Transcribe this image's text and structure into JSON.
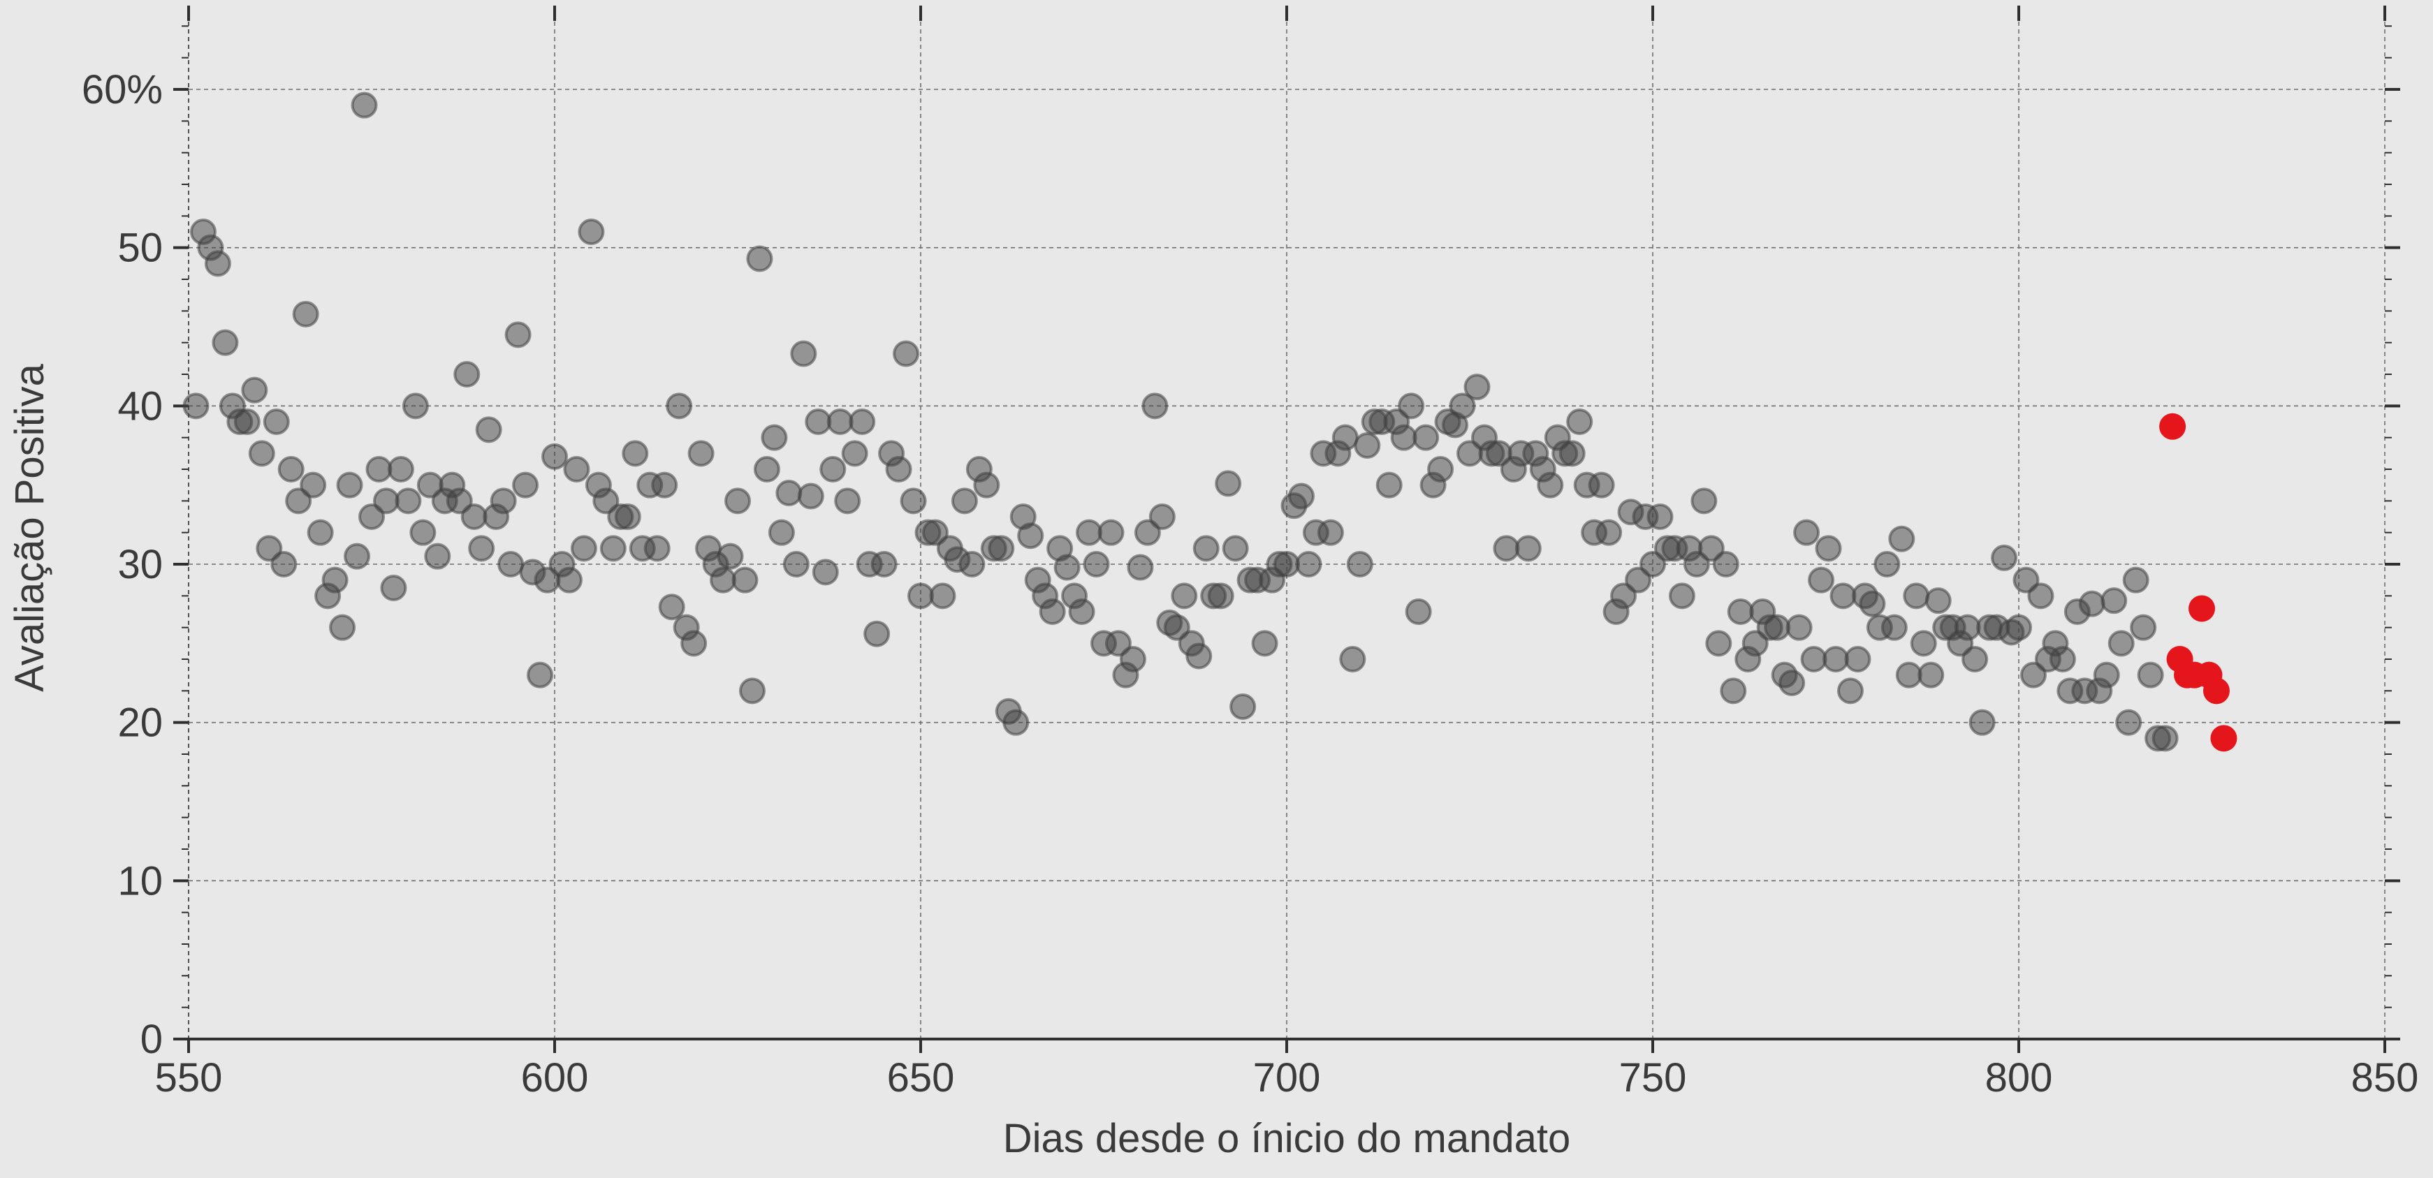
{
  "chart_data": {
    "type": "scatter",
    "title": "",
    "xlabel": "Dias desde o ínicio do mandato",
    "ylabel": "Avaliação Positiva",
    "xlim": [
      550,
      850
    ],
    "ylim": [
      0,
      65
    ],
    "x_ticks": [
      550,
      600,
      650,
      700,
      750,
      800,
      850
    ],
    "x_tick_labels": [
      "550",
      "600",
      "650",
      "700",
      "750",
      "800",
      "850"
    ],
    "y_ticks": [
      0,
      10,
      20,
      30,
      40,
      50,
      60
    ],
    "y_tick_labels": [
      "0",
      "10",
      "20",
      "30",
      "40",
      "50",
      "60%"
    ],
    "grid": true,
    "colors": {
      "background": "#e8e8e9",
      "series_gray": "#3f3f3f",
      "series_red": "#e4161b",
      "grid": "#6e6e6e",
      "axis": "#2e2e2e"
    },
    "series": [
      {
        "color": "#3f3f3f",
        "points": [
          [
            551,
            40
          ],
          [
            552,
            51
          ],
          [
            553,
            50
          ],
          [
            554,
            49
          ],
          [
            555,
            44
          ],
          [
            556,
            40
          ],
          [
            557,
            39
          ],
          [
            558,
            39
          ],
          [
            559,
            41
          ],
          [
            560,
            37
          ],
          [
            561,
            31
          ],
          [
            562,
            39
          ],
          [
            563,
            30
          ],
          [
            564,
            36
          ],
          [
            565,
            34
          ],
          [
            566,
            45.8
          ],
          [
            567,
            35
          ],
          [
            568,
            32
          ],
          [
            569,
            28
          ],
          [
            570,
            29
          ],
          [
            571,
            26
          ],
          [
            572,
            35
          ],
          [
            573,
            30.5
          ],
          [
            574,
            59
          ],
          [
            575,
            33
          ],
          [
            576,
            36
          ],
          [
            577,
            34
          ],
          [
            578,
            28.5
          ],
          [
            579,
            36
          ],
          [
            580,
            34
          ],
          [
            581,
            40
          ],
          [
            582,
            32
          ],
          [
            583,
            35
          ],
          [
            584,
            30.5
          ],
          [
            585,
            34
          ],
          [
            586,
            35
          ],
          [
            587,
            34
          ],
          [
            588,
            42
          ],
          [
            589,
            33
          ],
          [
            590,
            31
          ],
          [
            591,
            38.5
          ],
          [
            592,
            33
          ],
          [
            593,
            34
          ],
          [
            594,
            30
          ],
          [
            595,
            44.5
          ],
          [
            596,
            35
          ],
          [
            597,
            29.5
          ],
          [
            598,
            23
          ],
          [
            599,
            29
          ],
          [
            600,
            36.8
          ],
          [
            601,
            30
          ],
          [
            602,
            29
          ],
          [
            603,
            36
          ],
          [
            604,
            31
          ],
          [
            605,
            51
          ],
          [
            606,
            35
          ],
          [
            607,
            34
          ],
          [
            608,
            31
          ],
          [
            609,
            33
          ],
          [
            610,
            33
          ],
          [
            611,
            37
          ],
          [
            612,
            31
          ],
          [
            613,
            35
          ],
          [
            614,
            31
          ],
          [
            615,
            35
          ],
          [
            616,
            27.3
          ],
          [
            617,
            40
          ],
          [
            618,
            26
          ],
          [
            619,
            25
          ],
          [
            620,
            37
          ],
          [
            621,
            31
          ],
          [
            622,
            30
          ],
          [
            623,
            29
          ],
          [
            624,
            30.5
          ],
          [
            625,
            34
          ],
          [
            626,
            29
          ],
          [
            627,
            22
          ],
          [
            628,
            49.3
          ],
          [
            629,
            36
          ],
          [
            630,
            38
          ],
          [
            631,
            32
          ],
          [
            632,
            34.5
          ],
          [
            633,
            30
          ],
          [
            634,
            43.3
          ],
          [
            635,
            34.3
          ],
          [
            636,
            39
          ],
          [
            637,
            29.5
          ],
          [
            638,
            36
          ],
          [
            639,
            39
          ],
          [
            640,
            34
          ],
          [
            641,
            37
          ],
          [
            642,
            39
          ],
          [
            643,
            30
          ],
          [
            644,
            25.6
          ],
          [
            645,
            30
          ],
          [
            646,
            37
          ],
          [
            647,
            36
          ],
          [
            648,
            43.3
          ],
          [
            649,
            34
          ],
          [
            650,
            28
          ],
          [
            651,
            32
          ],
          [
            652,
            32
          ],
          [
            653,
            28
          ],
          [
            654,
            31
          ],
          [
            655,
            30.3
          ],
          [
            656,
            34
          ],
          [
            657,
            30
          ],
          [
            658,
            36
          ],
          [
            659,
            35
          ],
          [
            660,
            31
          ],
          [
            661,
            31
          ],
          [
            662,
            20.7
          ],
          [
            663,
            20
          ],
          [
            664,
            33
          ],
          [
            665,
            31.8
          ],
          [
            666,
            29
          ],
          [
            667,
            28
          ],
          [
            668,
            27
          ],
          [
            669,
            31
          ],
          [
            670,
            29.8
          ],
          [
            671,
            28
          ],
          [
            672,
            27
          ],
          [
            673,
            32
          ],
          [
            674,
            30
          ],
          [
            675,
            25
          ],
          [
            676,
            32
          ],
          [
            677,
            25
          ],
          [
            678,
            23
          ],
          [
            679,
            24
          ],
          [
            680,
            29.8
          ],
          [
            681,
            32
          ],
          [
            682,
            40
          ],
          [
            683,
            33
          ],
          [
            684,
            26.3
          ],
          [
            685,
            26
          ],
          [
            686,
            28
          ],
          [
            687,
            25
          ],
          [
            688,
            24.2
          ],
          [
            689,
            31
          ],
          [
            690,
            28
          ],
          [
            691,
            28
          ],
          [
            692,
            35.1
          ],
          [
            693,
            31
          ],
          [
            694,
            21
          ],
          [
            695,
            29
          ],
          [
            696,
            29
          ],
          [
            697,
            25
          ],
          [
            698,
            29
          ],
          [
            699,
            30
          ],
          [
            700,
            30
          ],
          [
            701,
            33.7
          ],
          [
            702,
            34.3
          ],
          [
            703,
            30
          ],
          [
            704,
            32
          ],
          [
            705,
            37
          ],
          [
            706,
            32
          ],
          [
            707,
            37
          ],
          [
            708,
            38
          ],
          [
            709,
            24
          ],
          [
            710,
            30
          ],
          [
            711,
            37.5
          ],
          [
            712,
            39
          ],
          [
            713,
            39
          ],
          [
            714,
            35
          ],
          [
            715,
            39
          ],
          [
            716,
            38
          ],
          [
            717,
            40
          ],
          [
            718,
            27
          ],
          [
            719,
            38
          ],
          [
            720,
            35
          ],
          [
            721,
            36
          ],
          [
            722,
            39
          ],
          [
            723,
            38.8
          ],
          [
            724,
            40
          ],
          [
            725,
            37
          ],
          [
            726,
            41.2
          ],
          [
            727,
            38
          ],
          [
            728,
            37
          ],
          [
            729,
            37
          ],
          [
            730,
            31
          ],
          [
            731,
            36
          ],
          [
            732,
            37
          ],
          [
            733,
            31
          ],
          [
            734,
            37
          ],
          [
            735,
            36
          ],
          [
            736,
            35
          ],
          [
            737,
            38
          ],
          [
            738,
            37
          ],
          [
            739,
            37
          ],
          [
            740,
            39
          ],
          [
            741,
            35
          ],
          [
            742,
            32
          ],
          [
            743,
            35
          ],
          [
            744,
            32
          ],
          [
            745,
            27
          ],
          [
            746,
            28
          ],
          [
            747,
            33.3
          ],
          [
            748,
            29
          ],
          [
            749,
            33
          ],
          [
            750,
            30
          ],
          [
            751,
            33
          ],
          [
            752,
            31
          ],
          [
            753,
            31
          ],
          [
            754,
            28
          ],
          [
            755,
            31
          ],
          [
            756,
            30
          ],
          [
            757,
            34
          ],
          [
            758,
            31
          ],
          [
            759,
            25
          ],
          [
            760,
            30
          ],
          [
            761,
            22
          ],
          [
            762,
            27
          ],
          [
            763,
            24
          ],
          [
            764,
            25
          ],
          [
            765,
            27
          ],
          [
            766,
            26
          ],
          [
            767,
            26
          ],
          [
            768,
            23
          ],
          [
            769,
            22.5
          ],
          [
            770,
            26
          ],
          [
            771,
            32
          ],
          [
            772,
            24
          ],
          [
            773,
            29
          ],
          [
            774,
            31
          ],
          [
            775,
            24
          ],
          [
            776,
            28
          ],
          [
            777,
            22
          ],
          [
            778,
            24
          ],
          [
            779,
            28
          ],
          [
            780,
            27.5
          ],
          [
            781,
            26
          ],
          [
            782,
            30
          ],
          [
            783,
            26
          ],
          [
            784,
            31.6
          ],
          [
            785,
            23
          ],
          [
            786,
            28
          ],
          [
            787,
            25
          ],
          [
            788,
            23
          ],
          [
            789,
            27.7
          ],
          [
            790,
            26
          ],
          [
            791,
            26
          ],
          [
            792,
            25
          ],
          [
            793,
            26
          ],
          [
            794,
            24
          ],
          [
            795,
            20
          ],
          [
            796,
            26
          ],
          [
            797,
            26
          ],
          [
            798,
            30.4
          ],
          [
            799,
            25.7
          ],
          [
            800,
            26
          ],
          [
            801,
            29
          ],
          [
            802,
            23
          ],
          [
            803,
            28
          ],
          [
            804,
            24
          ],
          [
            805,
            25
          ],
          [
            806,
            24
          ],
          [
            807,
            22
          ],
          [
            808,
            27
          ],
          [
            809,
            22
          ],
          [
            810,
            27.5
          ],
          [
            811,
            22
          ],
          [
            812,
            23
          ],
          [
            813,
            27.7
          ],
          [
            814,
            25
          ],
          [
            815,
            20
          ],
          [
            816,
            29
          ],
          [
            817,
            26
          ],
          [
            818,
            23
          ],
          [
            819,
            19
          ],
          [
            820,
            19
          ]
        ]
      },
      {
        "color": "#e4161b",
        "points": [
          [
            821,
            38.7
          ],
          [
            822,
            24
          ],
          [
            823,
            23
          ],
          [
            824,
            23
          ],
          [
            825,
            27.2
          ],
          [
            826,
            23
          ],
          [
            827,
            22
          ],
          [
            828,
            19
          ]
        ]
      }
    ]
  }
}
